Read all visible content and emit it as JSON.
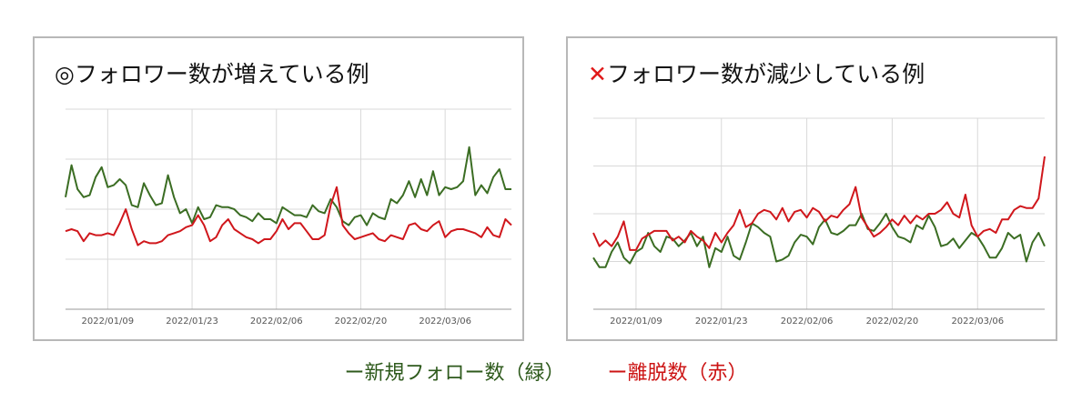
{
  "colors": {
    "green": "#3b6d23",
    "red": "#d0171c",
    "grid": "#d9d9d9",
    "axis": "#999999"
  },
  "legend": {
    "green_label": "ー新規フォロー数（緑）",
    "red_label": "ー離脱数（赤）"
  },
  "chart_data": [
    {
      "type": "line",
      "title_mark": "◎",
      "title": "フォロワー数が増えている例",
      "x_ticks": [
        "2022/01/09",
        "2022/01/23",
        "2022/02/06",
        "2022/02/20",
        "2022/03/06"
      ],
      "x_tick_index": [
        7,
        21,
        35,
        49,
        63
      ],
      "y_range": [
        0,
        100
      ],
      "grid": true,
      "series": [
        {
          "color": "green",
          "values": [
            56,
            72,
            60,
            56,
            57,
            66,
            71,
            61,
            62,
            65,
            62,
            52,
            51,
            63,
            57,
            52,
            53,
            67,
            56,
            48,
            50,
            43,
            51,
            45,
            46,
            52,
            51,
            51,
            50,
            47,
            46,
            44,
            48,
            45,
            45,
            43,
            51,
            49,
            47,
            47,
            46,
            52,
            49,
            48,
            55,
            51,
            44,
            42,
            46,
            47,
            42,
            48,
            46,
            45,
            55,
            53,
            57,
            64,
            56,
            65,
            57,
            69,
            57,
            61,
            60,
            61,
            64,
            81,
            57,
            62,
            58,
            66,
            70,
            60,
            60
          ]
        },
        {
          "color": "red",
          "values": [
            39,
            40,
            39,
            34,
            38,
            37,
            37,
            38,
            37,
            43,
            50,
            40,
            32,
            34,
            33,
            33,
            34,
            37,
            38,
            39,
            41,
            42,
            47,
            42,
            34,
            36,
            42,
            45,
            40,
            38,
            36,
            35,
            33,
            35,
            35,
            39,
            45,
            40,
            43,
            43,
            39,
            35,
            35,
            37,
            52,
            61,
            42,
            38,
            35,
            36,
            37,
            38,
            35,
            34,
            37,
            36,
            35,
            42,
            43,
            40,
            39,
            42,
            44,
            36,
            39,
            40,
            40,
            39,
            38,
            36,
            41,
            37,
            36,
            45,
            42
          ]
        }
      ]
    },
    {
      "type": "line",
      "title_mark": "✕",
      "title": "フォロワー数が減少している例",
      "x_ticks": [
        "2022/01/09",
        "2022/01/23",
        "2022/02/06",
        "2022/02/20",
        "2022/03/06"
      ],
      "x_tick_index": [
        7,
        21,
        35,
        49,
        63
      ],
      "y_range": [
        0,
        100
      ],
      "grid": true,
      "series": [
        {
          "color": "green",
          "values": [
            27,
            22,
            22,
            30,
            35,
            27,
            24,
            30,
            32,
            40,
            33,
            30,
            38,
            37,
            33,
            36,
            40,
            33,
            38,
            22,
            32,
            30,
            38,
            28,
            26,
            35,
            45,
            43,
            40,
            38,
            25,
            26,
            28,
            35,
            39,
            38,
            34,
            43,
            47,
            40,
            39,
            41,
            44,
            44,
            50,
            42,
            41,
            45,
            50,
            43,
            38,
            37,
            35,
            44,
            42,
            49,
            43,
            33,
            34,
            37,
            32,
            36,
            40,
            38,
            33,
            27,
            27,
            32,
            40,
            37,
            39,
            25,
            35,
            40,
            33
          ]
        },
        {
          "color": "red",
          "values": [
            40,
            33,
            36,
            33,
            38,
            46,
            31,
            31,
            37,
            39,
            41,
            41,
            41,
            36,
            38,
            35,
            41,
            38,
            36,
            32,
            40,
            35,
            40,
            44,
            52,
            43,
            45,
            50,
            52,
            51,
            47,
            53,
            46,
            51,
            52,
            48,
            53,
            51,
            46,
            49,
            48,
            52,
            55,
            64,
            48,
            43,
            38,
            40,
            43,
            47,
            44,
            49,
            45,
            49,
            47,
            50,
            50,
            52,
            56,
            50,
            48,
            60,
            44,
            38,
            41,
            42,
            40,
            47,
            47,
            52,
            54,
            53,
            53,
            58,
            80
          ]
        }
      ]
    }
  ]
}
